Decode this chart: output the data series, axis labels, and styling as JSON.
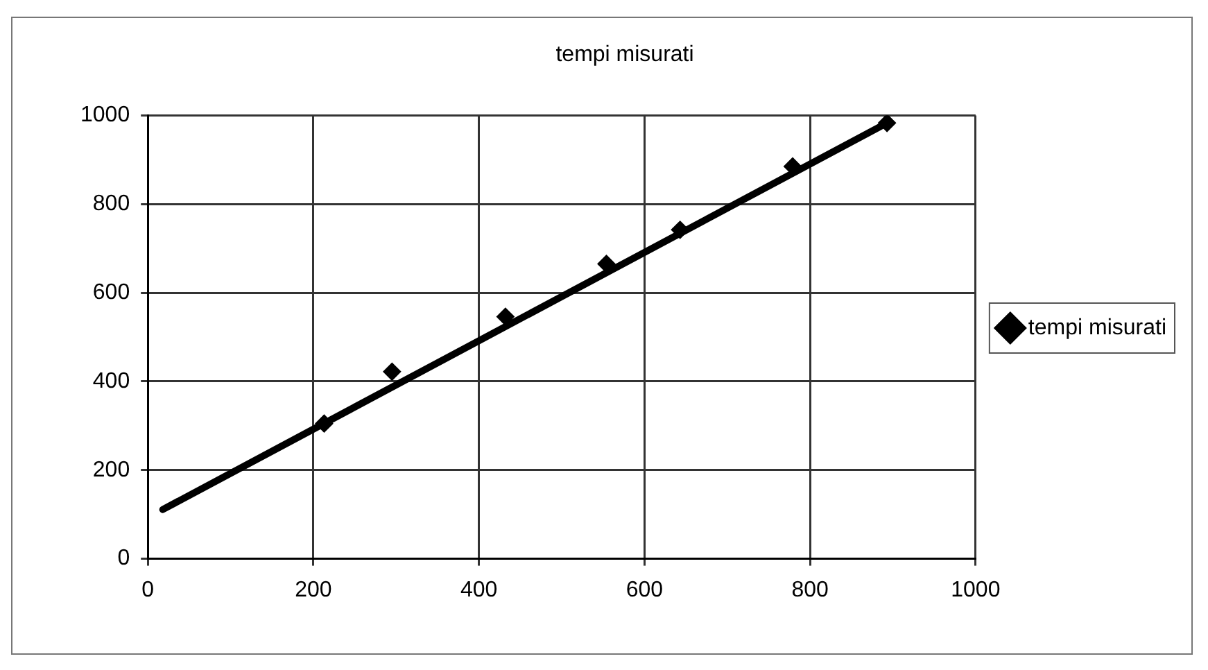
{
  "chart_data": {
    "type": "scatter",
    "title": "tempi misurati",
    "xlim": [
      0,
      1000
    ],
    "xticks": [
      0,
      200,
      400,
      600,
      800,
      1000
    ],
    "ylim": [
      0,
      1000
    ],
    "yticks": [
      0,
      200,
      400,
      600,
      800,
      1000
    ],
    "grid": true,
    "legend": "right",
    "marker": "diamond",
    "series": [
      {
        "name": "tempi misurati",
        "color": "#000000",
        "x": [
          213,
          295,
          432,
          554,
          643,
          779,
          893
        ],
        "values": [
          305,
          422,
          546,
          665,
          742,
          885,
          983
        ]
      },
      {
        "type": "line",
        "color": "#000000",
        "marker": "none",
        "x": [
          18,
          893
        ],
        "values": [
          111,
          983
        ]
      }
    ]
  }
}
